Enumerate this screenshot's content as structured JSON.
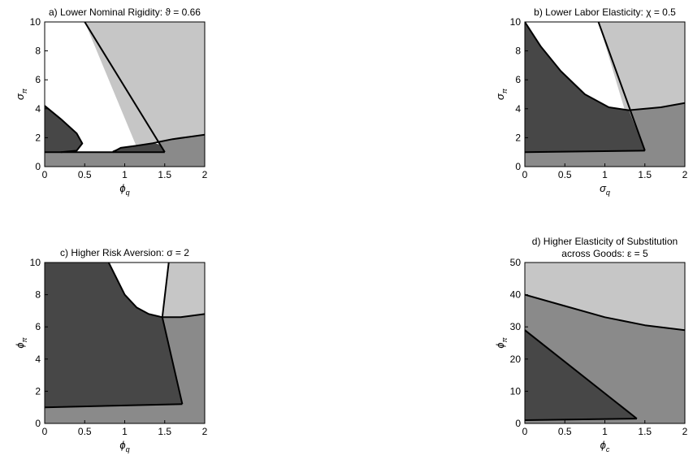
{
  "colors": {
    "white_region": "#ffffff",
    "light_region": "#c6c6c6",
    "mid_region": "#8a8a8a",
    "dark_region": "#474747",
    "boundary": "#000000"
  },
  "chart_data": [
    {
      "id": "a",
      "type": "region-map",
      "title": "a) Lower Nominal Rigidity: ϑ = 0.66",
      "xlabel": {
        "main": "ϕ",
        "sub": "q"
      },
      "ylabel": {
        "main": "σ",
        "sub": "π"
      },
      "xlim": [
        0,
        2
      ],
      "ylim": [
        0,
        10
      ],
      "xticks": [
        0,
        0.5,
        1,
        1.5,
        2
      ],
      "xtick_labels": [
        "0",
        "0.5",
        "1",
        "1.5",
        "2"
      ],
      "yticks": [
        0,
        2,
        4,
        6,
        8,
        10
      ],
      "ytick_labels": [
        "0",
        "2",
        "4",
        "6",
        "8",
        "10"
      ],
      "regions": [
        {
          "shade": "white",
          "points": [
            [
              0,
              1
            ],
            [
              0,
              10
            ],
            [
              2,
              10
            ],
            [
              2,
              0
            ],
            [
              0,
              0
            ]
          ]
        },
        {
          "shade": "light",
          "points": [
            [
              0.5,
              10
            ],
            [
              2,
              10
            ],
            [
              2,
              2.2
            ],
            [
              1.4,
              1.7
            ],
            [
              1.15,
              1.35
            ]
          ]
        },
        {
          "shade": "mid",
          "points": [
            [
              0,
              0
            ],
            [
              2,
              0
            ],
            [
              2,
              2.2
            ],
            [
              1.7,
              2.05
            ],
            [
              1.4,
              1.75
            ],
            [
              1.5,
              1
            ],
            [
              0,
              1
            ]
          ]
        },
        {
          "shade": "dark",
          "points": [
            [
              0,
              4.2
            ],
            [
              0.2,
              3.3
            ],
            [
              0.4,
              2.3
            ],
            [
              0.47,
              1.6
            ],
            [
              0.4,
              1.1
            ],
            [
              0.2,
              1
            ],
            [
              0,
              1
            ]
          ]
        },
        {
          "shade": "dark",
          "points": [
            [
              0.85,
              1
            ],
            [
              0.85,
              1.1
            ],
            [
              0.95,
              1.3
            ],
            [
              1.15,
              1.45
            ],
            [
              1.35,
              1.65
            ],
            [
              1.45,
              1.5
            ],
            [
              1.5,
              1
            ]
          ]
        }
      ],
      "boundaries": [
        [
          [
            0.5,
            10
          ],
          [
            1.5,
            1
          ]
        ],
        [
          [
            0.85,
            1
          ],
          [
            0.95,
            1.3
          ],
          [
            1.15,
            1.45
          ],
          [
            1.35,
            1.62
          ],
          [
            1.6,
            1.9
          ],
          [
            2,
            2.2
          ]
        ],
        [
          [
            0,
            1
          ],
          [
            1.5,
            1
          ]
        ],
        [
          [
            0,
            4.2
          ],
          [
            0.2,
            3.3
          ],
          [
            0.4,
            2.3
          ],
          [
            0.47,
            1.6
          ],
          [
            0.4,
            1.1
          ],
          [
            0.2,
            1
          ]
        ]
      ]
    },
    {
      "id": "b",
      "type": "region-map",
      "title": "b) Lower Labor Elasticity: χ = 0.5",
      "xlabel": {
        "main": "σ",
        "sub": "q"
      },
      "ylabel": {
        "main": "σ",
        "sub": "π"
      },
      "xlim": [
        0,
        2
      ],
      "ylim": [
        0,
        10
      ],
      "xticks": [
        0,
        0.5,
        1,
        1.5,
        2
      ],
      "xtick_labels": [
        "0",
        "0.5",
        "1",
        "1.5",
        "2"
      ],
      "yticks": [
        0,
        2,
        4,
        6,
        8,
        10
      ],
      "ytick_labels": [
        "0",
        "2",
        "4",
        "6",
        "8",
        "10"
      ],
      "regions": [
        {
          "shade": "light",
          "points": [
            [
              0.92,
              10
            ],
            [
              2,
              10
            ],
            [
              2,
              4.4
            ],
            [
              1.7,
              4.1
            ],
            [
              1.3,
              3.9
            ],
            [
              1.25,
              3.9
            ]
          ]
        },
        {
          "shade": "mid",
          "points": [
            [
              0,
              0
            ],
            [
              2,
              0
            ],
            [
              2,
              4.4
            ],
            [
              1.7,
              4.1
            ],
            [
              1.3,
              3.9
            ],
            [
              1.5,
              1.1
            ],
            [
              0,
              1
            ]
          ]
        },
        {
          "shade": "dark",
          "points": [
            [
              0,
              10
            ],
            [
              0,
              1
            ],
            [
              1.5,
              1.1
            ],
            [
              1.3,
              3.9
            ],
            [
              1.05,
              4.1
            ],
            [
              0.75,
              5.0
            ],
            [
              0.45,
              6.6
            ],
            [
              0.2,
              8.3
            ]
          ]
        }
      ],
      "boundaries": [
        [
          [
            0.92,
            10
          ],
          [
            1.5,
            1.1
          ]
        ],
        [
          [
            0,
            10
          ],
          [
            0.2,
            8.3
          ],
          [
            0.45,
            6.6
          ],
          [
            0.75,
            5.0
          ],
          [
            1.05,
            4.1
          ],
          [
            1.3,
            3.9
          ],
          [
            1.7,
            4.1
          ],
          [
            2,
            4.4
          ]
        ],
        [
          [
            0,
            1
          ],
          [
            1.5,
            1.1
          ]
        ]
      ]
    },
    {
      "id": "c",
      "type": "region-map",
      "title": "c) Higher Risk Aversion: σ = 2",
      "xlabel": {
        "main": "ϕ",
        "sub": "q"
      },
      "ylabel": {
        "main": "ϕ",
        "sub": "π"
      },
      "xlim": [
        0,
        2
      ],
      "ylim": [
        0,
        10
      ],
      "xticks": [
        0,
        0.5,
        1,
        1.5,
        2
      ],
      "xtick_labels": [
        "0",
        "0.5",
        "1",
        "1.5",
        "2"
      ],
      "yticks": [
        0,
        2,
        4,
        6,
        8,
        10
      ],
      "ytick_labels": [
        "0",
        "2",
        "4",
        "6",
        "8",
        "10"
      ],
      "regions": [
        {
          "shade": "light",
          "points": [
            [
              1.55,
              10
            ],
            [
              2,
              10
            ],
            [
              2,
              6.8
            ],
            [
              1.7,
              6.6
            ],
            [
              1.47,
              6.6
            ]
          ]
        },
        {
          "shade": "mid",
          "points": [
            [
              0,
              0
            ],
            [
              2,
              0
            ],
            [
              2,
              6.8
            ],
            [
              1.7,
              6.6
            ],
            [
              1.47,
              6.6
            ],
            [
              1.72,
              1.2
            ],
            [
              0,
              1
            ]
          ]
        },
        {
          "shade": "dark",
          "points": [
            [
              0,
              10
            ],
            [
              0,
              1
            ],
            [
              1.72,
              1.2
            ],
            [
              1.47,
              6.6
            ],
            [
              1.3,
              6.8
            ],
            [
              1.15,
              7.2
            ],
            [
              1.0,
              8.0
            ],
            [
              0.8,
              10
            ]
          ]
        }
      ],
      "boundaries": [
        [
          [
            1.55,
            10
          ],
          [
            1.47,
            6.6
          ],
          [
            1.72,
            1.2
          ]
        ],
        [
          [
            0.8,
            10
          ],
          [
            1.0,
            8.0
          ],
          [
            1.15,
            7.2
          ],
          [
            1.3,
            6.8
          ],
          [
            1.47,
            6.6
          ],
          [
            1.7,
            6.6
          ],
          [
            2,
            6.8
          ]
        ],
        [
          [
            0,
            1
          ],
          [
            1.72,
            1.2
          ]
        ]
      ]
    },
    {
      "id": "d",
      "type": "region-map",
      "title": [
        "d) Higher Elasticity of Substitution",
        "across Goods: ε = 5"
      ],
      "xlabel": {
        "main": "ϕ",
        "sub": "c"
      },
      "ylabel": {
        "main": "ϕ",
        "sub": "π"
      },
      "xlim": [
        0,
        2
      ],
      "ylim": [
        0,
        50
      ],
      "xticks": [
        0,
        0.5,
        1,
        1.5,
        2
      ],
      "xtick_labels": [
        "0",
        "0.5",
        "1",
        "1.5",
        "2"
      ],
      "yticks": [
        0,
        10,
        20,
        30,
        40,
        50
      ],
      "ytick_labels": [
        "0",
        "10",
        "20",
        "30",
        "40",
        "50"
      ],
      "regions": [
        {
          "shade": "light",
          "points": [
            [
              0,
              40
            ],
            [
              0,
              50
            ],
            [
              2,
              50
            ],
            [
              2,
              29
            ],
            [
              1.5,
              30.5
            ],
            [
              1.0,
              33
            ],
            [
              0.5,
              36.5
            ]
          ]
        },
        {
          "shade": "mid",
          "points": [
            [
              0,
              0
            ],
            [
              2,
              0
            ],
            [
              2,
              29
            ],
            [
              1.5,
              30.5
            ],
            [
              1.0,
              33
            ],
            [
              0.5,
              36.5
            ],
            [
              0,
              40
            ]
          ]
        },
        {
          "shade": "dark",
          "points": [
            [
              0,
              29
            ],
            [
              1.4,
              1.5
            ],
            [
              0,
              1
            ]
          ]
        }
      ],
      "boundaries": [
        [
          [
            0,
            40
          ],
          [
            0.5,
            36.5
          ],
          [
            1.0,
            33
          ],
          [
            1.5,
            30.5
          ],
          [
            2,
            29
          ]
        ],
        [
          [
            0,
            29
          ],
          [
            1.4,
            1.5
          ]
        ],
        [
          [
            0,
            1
          ],
          [
            1.4,
            1.5
          ]
        ]
      ]
    }
  ]
}
